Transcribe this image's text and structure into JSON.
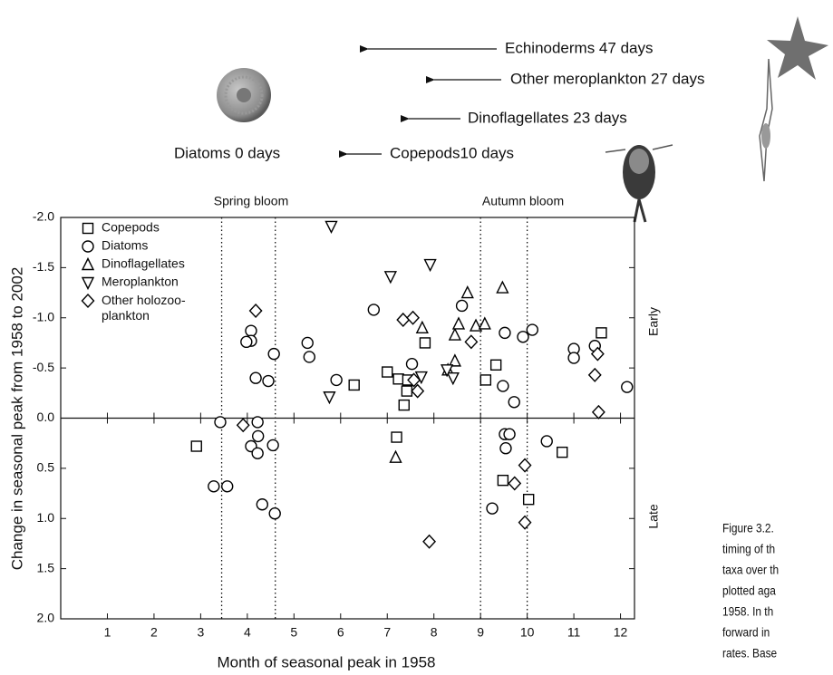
{
  "chart_data": {
    "type": "scatter",
    "xlabel": "Month of seasonal peak in 1958",
    "ylabel": "Change in seasonal peak from 1958 to 2002",
    "xlim": [
      0,
      12.3
    ],
    "ylim": [
      -2.0,
      2.0
    ],
    "y_inverted": true,
    "xticks": [
      1,
      2,
      3,
      4,
      5,
      6,
      7,
      8,
      9,
      10,
      11,
      12
    ],
    "yticks": [
      {
        "value": -2.0,
        "label": "-2.0"
      },
      {
        "value": -1.5,
        "label": "-1.5"
      },
      {
        "value": -1.0,
        "label": "-1.0"
      },
      {
        "value": -0.5,
        "label": "-0.5"
      },
      {
        "value": 0.0,
        "label": "0.0"
      },
      {
        "value": 0.5,
        "label": "0.5"
      },
      {
        "value": 1.0,
        "label": "1.0"
      },
      {
        "value": 1.5,
        "label": "1.5"
      },
      {
        "value": 2.0,
        "label": "2.0"
      }
    ],
    "zero_line": true,
    "legend": "upper left",
    "bloom_lines": [
      3.45,
      4.6,
      9.0,
      10.0
    ],
    "annotations": [
      "Spring bloom",
      "Autumn bloom"
    ],
    "side_labels": [
      "Early",
      "Late"
    ],
    "lag_labels": [
      "Echinoderms 47 days",
      "Other meroplankton 27 days",
      "Dinoflagellates 23 days",
      "Copepods10 days",
      "Diatoms 0 days"
    ],
    "caption": [
      "Figure 3.2.",
      "timing of th",
      "taxa over th",
      "plotted aga",
      "1958. In th",
      "forward in",
      "rates. Base"
    ],
    "series": [
      {
        "name": "Copepods",
        "marker": "square",
        "color": "#000000",
        "x": [
          2.91,
          6.29,
          7.0,
          7.24,
          7.44,
          7.42,
          7.36,
          7.81,
          7.2,
          9.11,
          9.33,
          9.48,
          10.03,
          10.75,
          11.59
        ],
        "values": [
          0.28,
          -0.33,
          -0.46,
          -0.39,
          -0.38,
          -0.27,
          -0.13,
          -0.75,
          0.19,
          -0.38,
          -0.53,
          0.62,
          0.81,
          0.34,
          -0.85
        ]
      },
      {
        "name": "Diatoms",
        "marker": "circle",
        "color": "#000000",
        "x": [
          3.42,
          3.28,
          3.57,
          4.08,
          4.23,
          4.22,
          4.22,
          4.55,
          4.32,
          4.59,
          4.08,
          4.08,
          3.98,
          4.18,
          4.45,
          4.57,
          5.29,
          5.33,
          5.91,
          6.71,
          7.53,
          8.6,
          9.52,
          9.91,
          10.11,
          9.48,
          9.72,
          9.52,
          9.62,
          9.54,
          9.25,
          10.42,
          11.0,
          11.0,
          11.45,
          12.14
        ],
        "values": [
          0.04,
          0.68,
          0.68,
          0.28,
          0.18,
          0.35,
          0.04,
          0.27,
          0.86,
          0.95,
          -0.87,
          -0.77,
          -0.76,
          -0.4,
          -0.37,
          -0.64,
          -0.75,
          -0.61,
          -0.38,
          -1.08,
          -0.54,
          -1.12,
          -0.85,
          -0.81,
          -0.88,
          -0.32,
          -0.16,
          0.16,
          0.16,
          0.3,
          0.9,
          0.23,
          -0.69,
          -0.6,
          -0.72,
          -0.31
        ]
      },
      {
        "name": "Dinoflagellates",
        "marker": "triangle-up",
        "color": "#000000",
        "x": [
          7.18,
          8.45,
          8.53,
          8.45,
          8.72,
          8.9,
          9.09,
          9.47,
          7.75,
          8.3
        ],
        "values": [
          0.39,
          -0.83,
          -0.94,
          -0.57,
          -1.25,
          -0.92,
          -0.94,
          -1.3,
          -0.9,
          -0.48
        ]
      },
      {
        "name": "Meroplankton",
        "marker": "triangle-down",
        "color": "#000000",
        "x": [
          5.8,
          5.76,
          7.07,
          7.92,
          7.73,
          8.41,
          8.28
        ],
        "values": [
          -1.91,
          -0.21,
          -1.41,
          -1.53,
          -0.41,
          -0.4,
          -0.48
        ]
      },
      {
        "name": "Other holozoo-\nplankton",
        "marker": "diamond",
        "color": "#000000",
        "x": [
          4.18,
          3.91,
          7.34,
          7.55,
          7.57,
          7.65,
          8.8,
          9.95,
          9.73,
          9.95,
          7.9,
          11.51,
          11.45,
          11.53
        ],
        "values": [
          -1.07,
          0.07,
          -0.98,
          -1.0,
          -0.38,
          -0.27,
          -0.76,
          0.47,
          0.65,
          1.04,
          1.23,
          -0.64,
          -0.43,
          -0.06
        ]
      }
    ]
  }
}
